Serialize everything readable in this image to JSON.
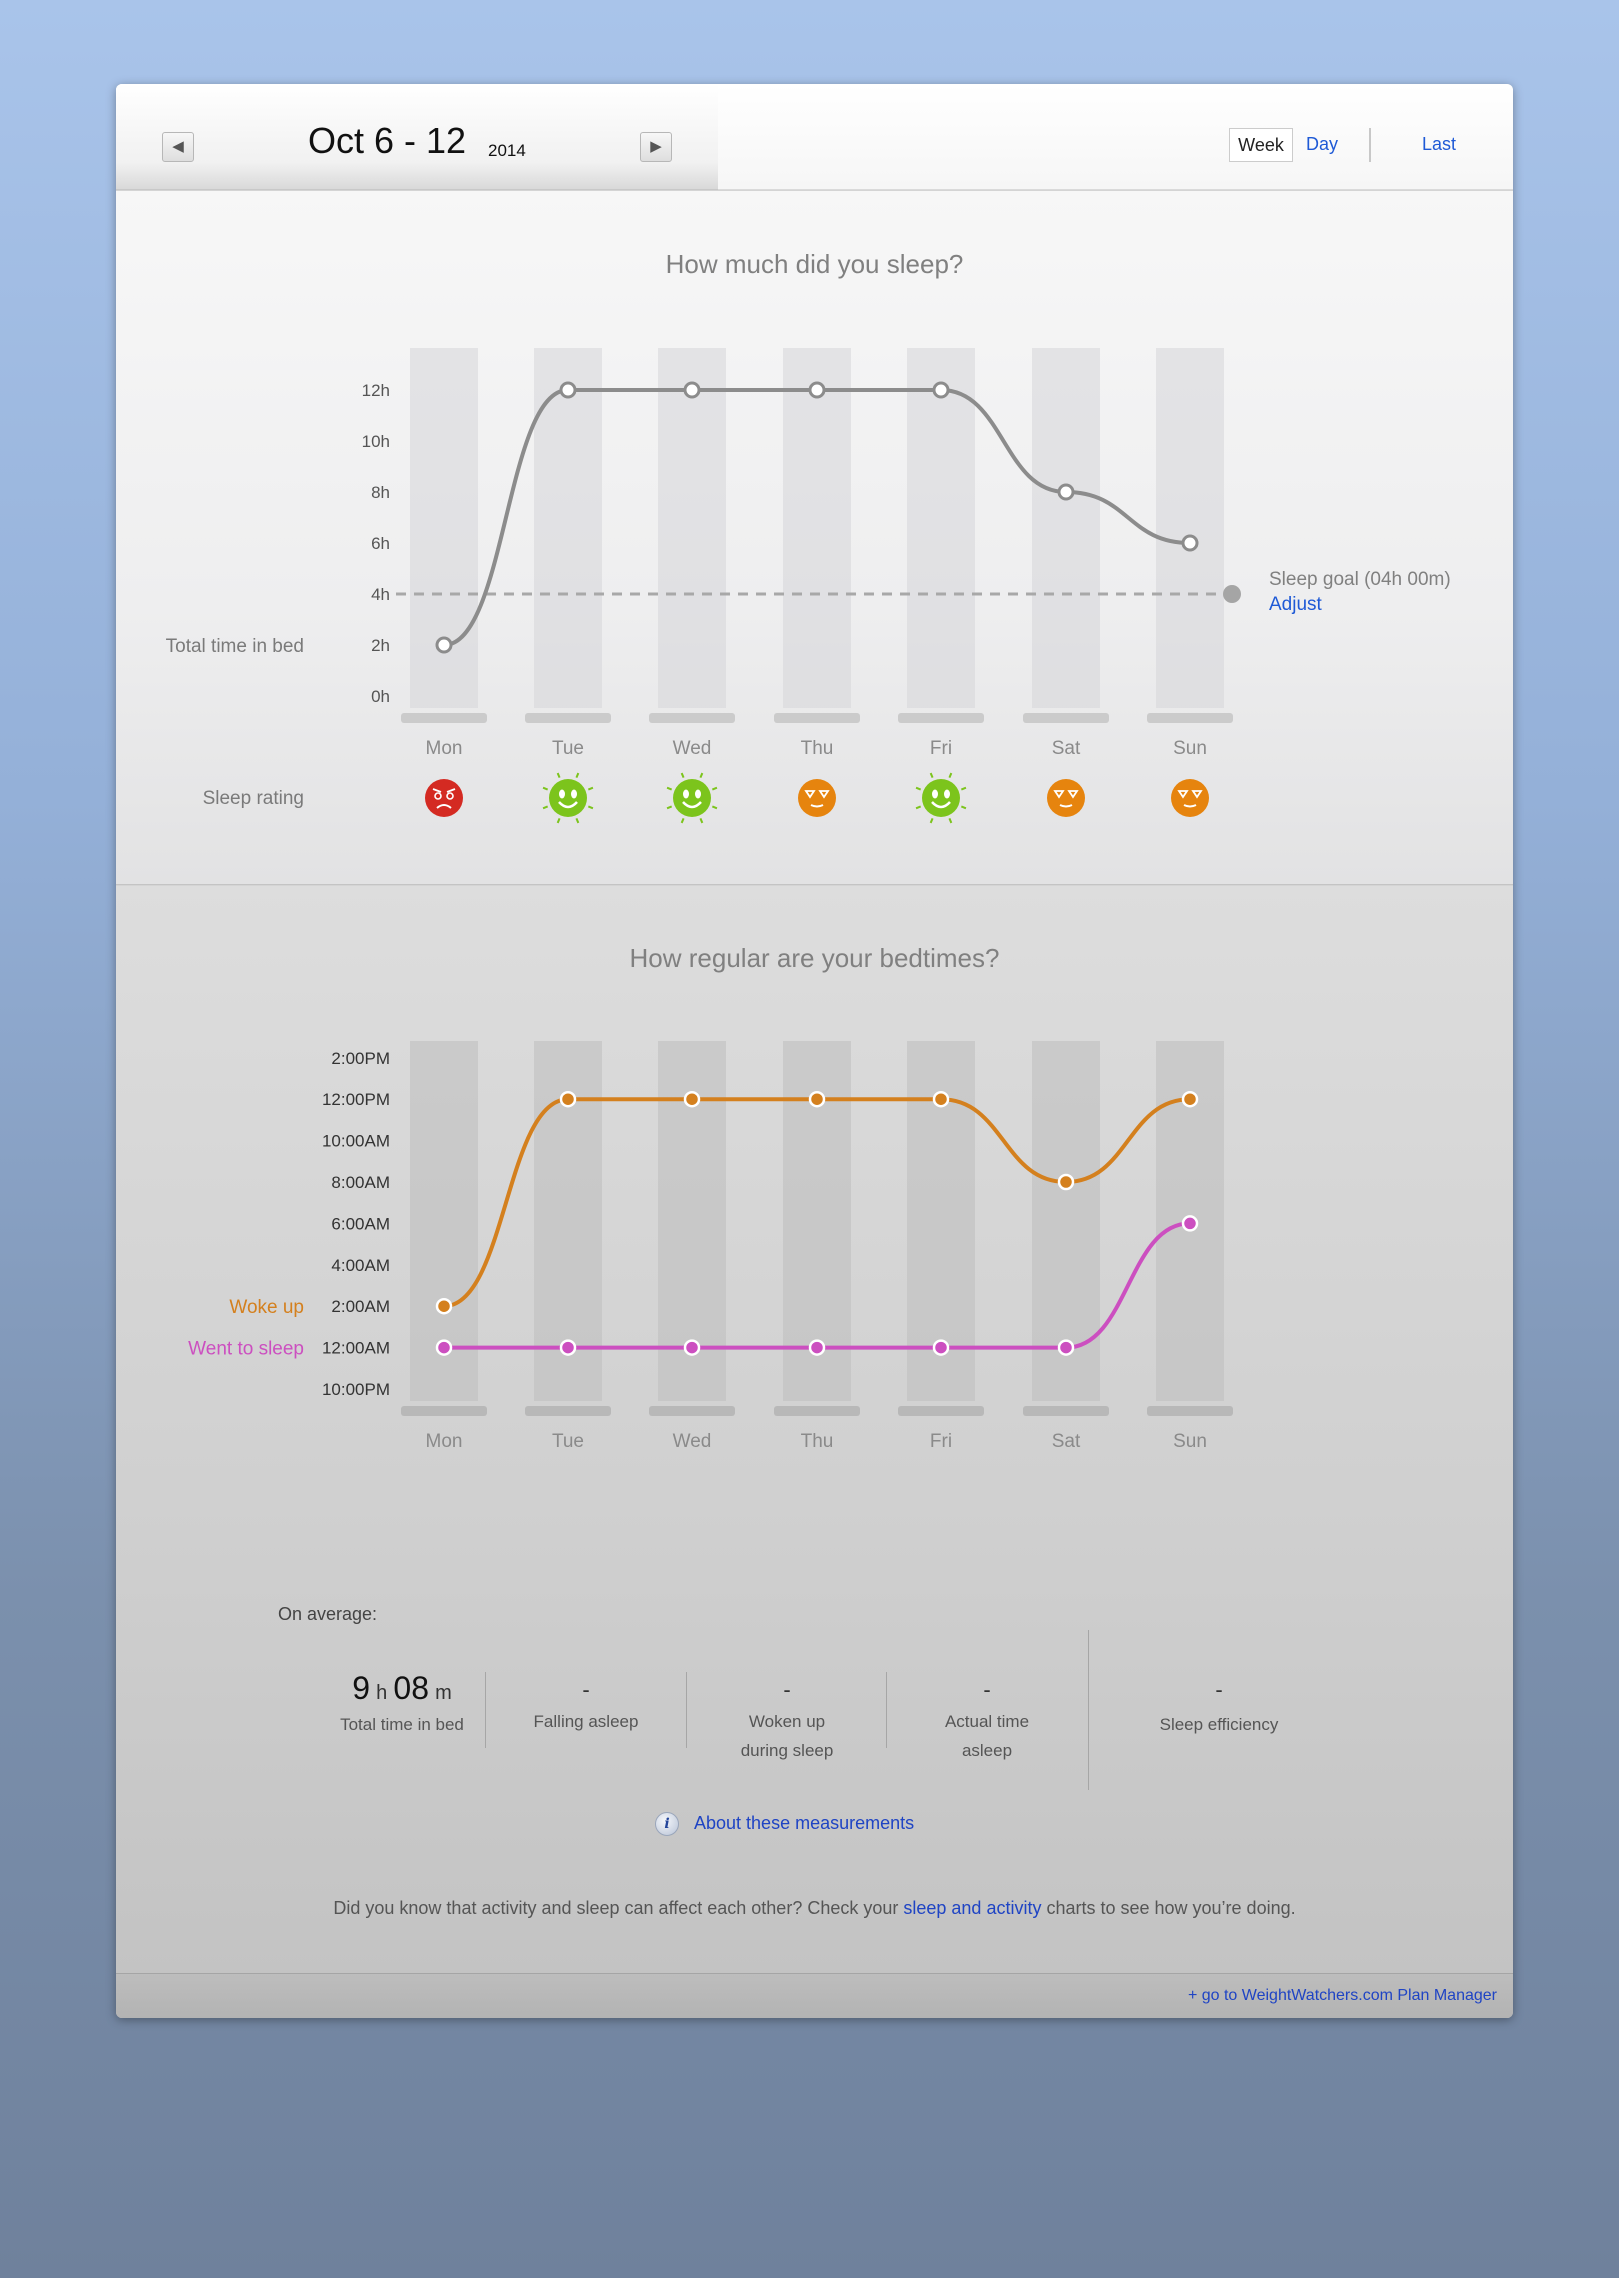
{
  "header": {
    "date_range": "Oct 6 - 12",
    "year": "2014",
    "prev_glyph": "◀",
    "next_glyph": "▶",
    "views": {
      "week": "Week",
      "day": "Day",
      "last": "Last"
    }
  },
  "sleep_chart": {
    "title": "How much did you sleep?",
    "row_label": "Total time in bed",
    "rating_label": "Sleep rating",
    "goal_label": "Sleep goal (04h 00m)",
    "adjust_label": "Adjust",
    "colors": {
      "line": "#8c8c8c",
      "goal": "#a8a8a8"
    }
  },
  "bedtime_chart": {
    "title": "How regular are your bedtimes?",
    "woke_label": "Woke up",
    "slept_label": "Went to sleep",
    "colors": {
      "woke": "#d4801e",
      "slept": "#cc4fc0"
    }
  },
  "chart_data": [
    {
      "type": "line",
      "title": "How much did you sleep?",
      "categories": [
        "Mon",
        "Tue",
        "Wed",
        "Thu",
        "Fri",
        "Sat",
        "Sun"
      ],
      "y_ticks": [
        "0h",
        "2h",
        "4h",
        "6h",
        "8h",
        "10h",
        "12h"
      ],
      "ylim": [
        0,
        12
      ],
      "series": [
        {
          "name": "Total time in bed",
          "values": [
            2,
            12,
            12,
            12,
            12,
            8,
            6
          ]
        }
      ],
      "goal_line": 4,
      "ratings": [
        "bad",
        "great",
        "great",
        "ok",
        "great",
        "ok",
        "ok"
      ],
      "rating_colors": {
        "bad": "#d42a22",
        "great": "#7cc41c",
        "ok": "#e6840e"
      }
    },
    {
      "type": "line",
      "title": "How regular are your bedtimes?",
      "categories": [
        "Mon",
        "Tue",
        "Wed",
        "Thu",
        "Fri",
        "Sat",
        "Sun"
      ],
      "y_ticks": [
        "10:00PM",
        "12:00AM",
        "2:00AM",
        "4:00AM",
        "6:00AM",
        "8:00AM",
        "10:00AM",
        "12:00PM",
        "2:00PM"
      ],
      "series": [
        {
          "name": "Woke up",
          "values": [
            "2:00AM",
            "12:00PM",
            "12:00PM",
            "12:00PM",
            "12:00PM",
            "8:00AM",
            "12:00PM"
          ]
        },
        {
          "name": "Went to sleep",
          "values": [
            "12:00AM",
            "12:00AM",
            "12:00AM",
            "12:00AM",
            "12:00AM",
            "12:00AM",
            "6:00AM"
          ]
        }
      ]
    }
  ],
  "averages": {
    "heading": "On average:",
    "total_hours": "9",
    "hours_unit": "h",
    "total_minutes": "08",
    "minutes_unit": "m",
    "total_label": "Total time in bed",
    "falling_value": "-",
    "falling_label": "Falling asleep",
    "woken_value": "-",
    "woken_label_1": "Woken up",
    "woken_label_2": "during sleep",
    "actual_value": "-",
    "actual_label_1": "Actual time",
    "actual_label_2": "asleep",
    "efficiency_value": "-",
    "efficiency_label": "Sleep efficiency"
  },
  "about": {
    "icon": "i",
    "label": "About these measurements"
  },
  "did_you_know": {
    "before": "Did you know that activity and sleep can affect each other? Check your ",
    "link": "sleep and activity",
    "after": " charts to see how you’re doing."
  },
  "footer": {
    "link": "+ go to WeightWatchers.com Plan Manager"
  }
}
